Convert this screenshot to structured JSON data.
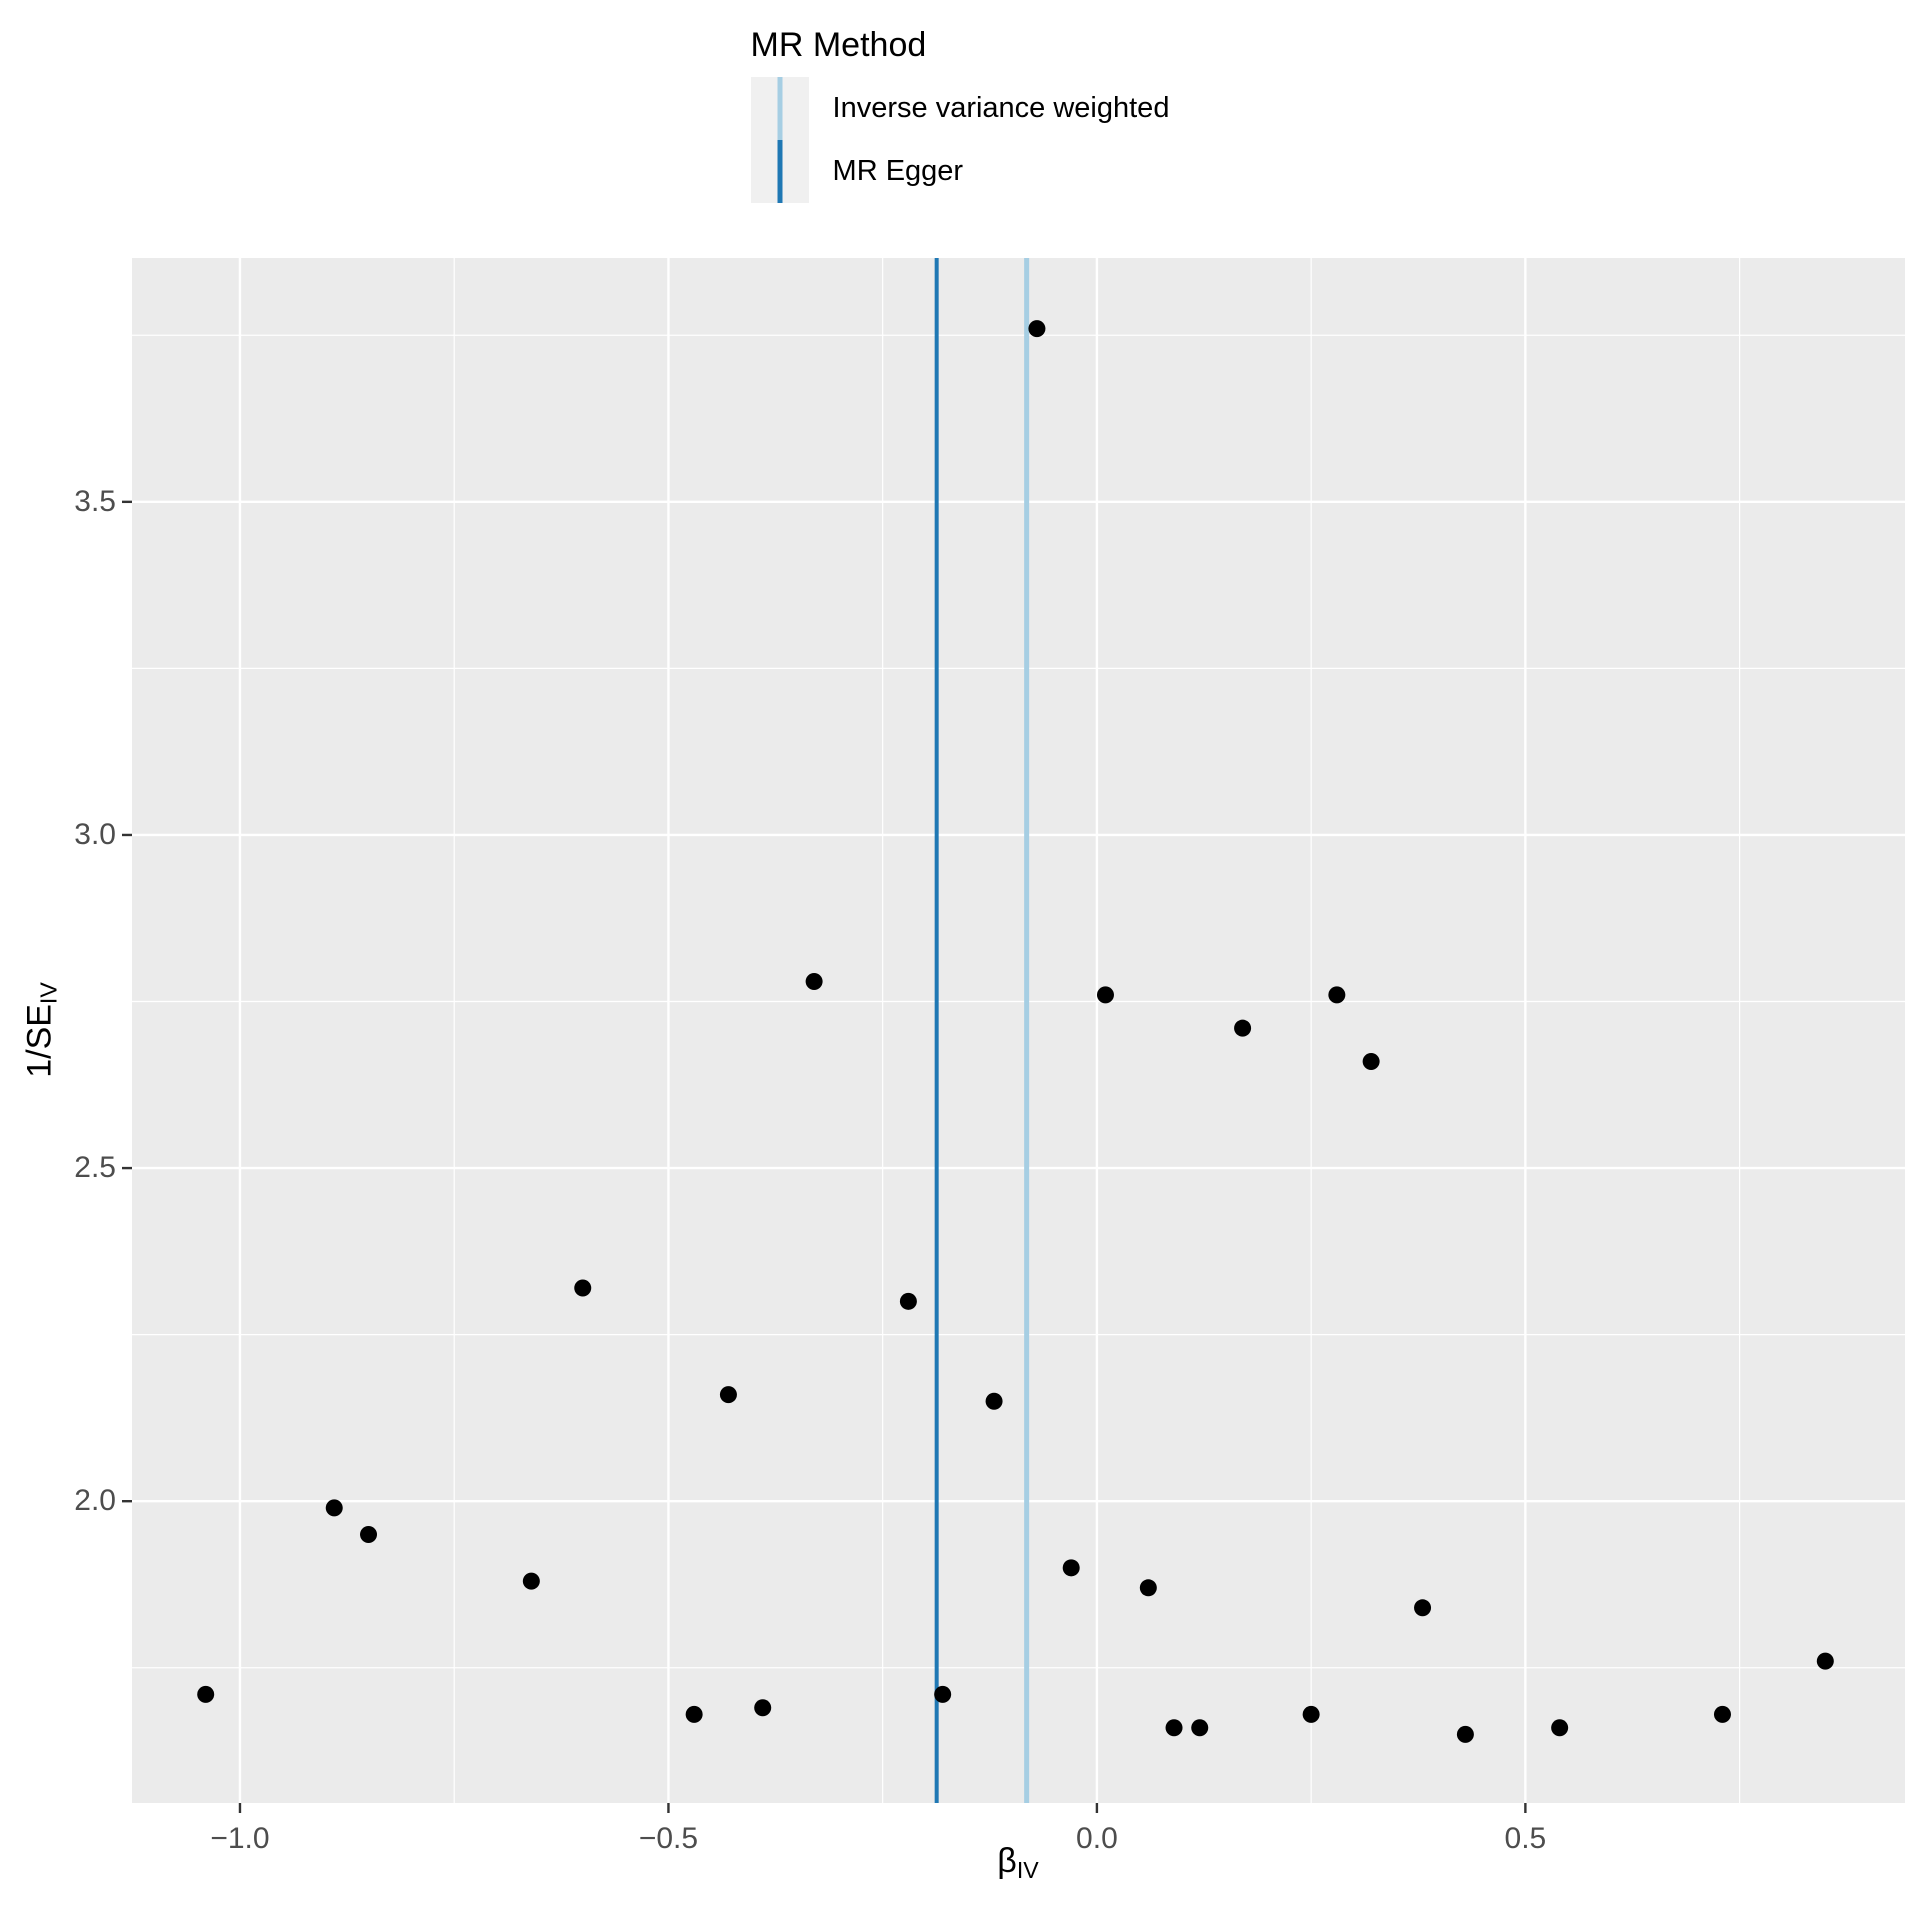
{
  "legend": {
    "title": "MR Method",
    "items": [
      {
        "label": "Inverse variance weighted",
        "color": "#A6CEE3"
      },
      {
        "label": "MR Egger",
        "color": "#1F78B4"
      }
    ]
  },
  "axes": {
    "xlabel_main": "β",
    "xlabel_sub": "IV",
    "ylabel_main": "1/SE",
    "ylabel_sub": "IV"
  },
  "chart_data": {
    "type": "scatter",
    "title": "",
    "xlabel": "beta_IV",
    "ylabel": "1/SE_IV",
    "legend_position": "top",
    "grid": true,
    "panel_bg": "#EBEBEB",
    "grid_color": "#FFFFFF",
    "point_color": "#000000",
    "tick_color": "#333333",
    "xlim": [
      -1.126,
      0.943
    ],
    "ylim": [
      1.547,
      3.866
    ],
    "x_major_ticks": [
      -1.0,
      -0.5,
      0.0,
      0.5
    ],
    "x_tick_labels": [
      "−1.0",
      "−0.5",
      "0.0",
      "0.5"
    ],
    "x_minor_ticks": [
      -0.75,
      -0.25,
      0.25,
      0.75
    ],
    "y_major_ticks": [
      2.0,
      2.5,
      3.0,
      3.5
    ],
    "y_tick_labels": [
      "2.0",
      "2.5",
      "3.0",
      "3.5"
    ],
    "y_minor_ticks": [
      1.75,
      2.25,
      2.75,
      3.25,
      3.75
    ],
    "vlines": [
      {
        "method": "Inverse variance weighted",
        "x": -0.082,
        "color": "#A6CEE3",
        "width": 5
      },
      {
        "method": "MR Egger",
        "x": -0.187,
        "color": "#1F78B4",
        "width": 4
      }
    ],
    "points": [
      {
        "x": -0.07,
        "y": 3.76
      },
      {
        "x": -0.33,
        "y": 2.78
      },
      {
        "x": 0.01,
        "y": 2.76
      },
      {
        "x": 0.28,
        "y": 2.76
      },
      {
        "x": 0.17,
        "y": 2.71
      },
      {
        "x": 0.32,
        "y": 2.66
      },
      {
        "x": -0.6,
        "y": 2.32
      },
      {
        "x": -0.22,
        "y": 2.3
      },
      {
        "x": -0.43,
        "y": 2.16
      },
      {
        "x": -0.12,
        "y": 2.15
      },
      {
        "x": -0.89,
        "y": 1.99
      },
      {
        "x": -0.85,
        "y": 1.95
      },
      {
        "x": -0.66,
        "y": 1.88
      },
      {
        "x": -0.03,
        "y": 1.9
      },
      {
        "x": 0.06,
        "y": 1.87
      },
      {
        "x": 0.38,
        "y": 1.84
      },
      {
        "x": -1.04,
        "y": 1.71
      },
      {
        "x": -0.47,
        "y": 1.68
      },
      {
        "x": -0.39,
        "y": 1.69
      },
      {
        "x": -0.18,
        "y": 1.71
      },
      {
        "x": 0.09,
        "y": 1.66
      },
      {
        "x": 0.12,
        "y": 1.66
      },
      {
        "x": 0.25,
        "y": 1.68
      },
      {
        "x": 0.43,
        "y": 1.65
      },
      {
        "x": 0.54,
        "y": 1.66
      },
      {
        "x": 0.73,
        "y": 1.68
      },
      {
        "x": 0.85,
        "y": 1.76
      }
    ]
  }
}
